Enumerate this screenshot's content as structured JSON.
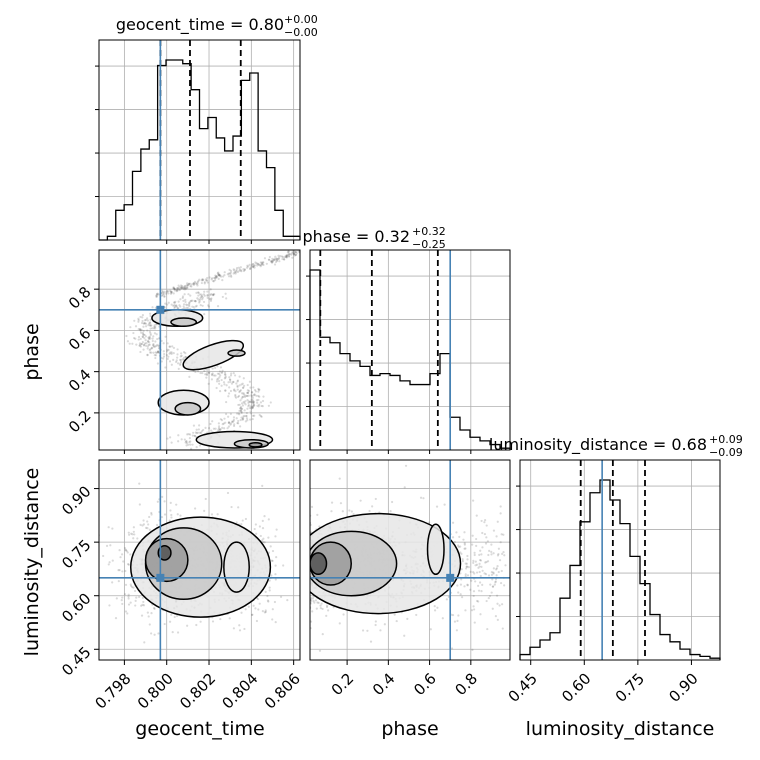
{
  "chart_data": {
    "type": "corner",
    "parameters": [
      "geocent_time",
      "phase",
      "luminosity_distance"
    ],
    "truth_color": "#4682b4",
    "titles": [
      {
        "text": "geocent_time = 0.80",
        "sup": "+0.00",
        "sub": "−0.00"
      },
      {
        "text": "phase = 0.32",
        "sup": "+0.32",
        "sub": "−0.25"
      },
      {
        "text": "luminosity_distance = 0.68",
        "sup": "+0.09",
        "sub": "−0.09"
      }
    ],
    "axis_labels": {
      "x": [
        "geocent_time",
        "phase",
        "luminosity_distance"
      ],
      "y": [
        "phase",
        "luminosity_distance"
      ]
    },
    "ranges": {
      "geocent_time": [
        0.7968,
        0.8063
      ],
      "phase": [
        0.02,
        0.99
      ],
      "luminosity_distance": [
        0.42,
        0.98
      ]
    },
    "ticks": {
      "geocent_time": {
        "values": [
          0.798,
          0.8,
          0.802,
          0.804,
          0.806
        ],
        "labels": [
          "0.798",
          "0.800",
          "0.802",
          "0.804",
          "0.806"
        ]
      },
      "phase": {
        "values": [
          0.2,
          0.4,
          0.6,
          0.8
        ],
        "labels": [
          "0.2",
          "0.4",
          "0.6",
          "0.8"
        ]
      },
      "luminosity_distance": {
        "values": [
          0.45,
          0.6,
          0.75,
          0.9
        ],
        "labels": [
          "0.45",
          "0.60",
          "0.75",
          "0.90"
        ]
      }
    },
    "truths": {
      "geocent_time": 0.7997,
      "phase": 0.7,
      "luminosity_distance": 0.65
    },
    "quantiles": {
      "geocent_time": [
        0.7997,
        0.8011,
        0.8035
      ],
      "phase": [
        0.07,
        0.32,
        0.64
      ],
      "luminosity_distance": [
        0.59,
        0.68,
        0.77
      ]
    },
    "histograms": {
      "geocent_time": [
        0.0,
        0.02,
        0.16,
        0.19,
        0.37,
        0.49,
        0.54,
        0.94,
        0.97,
        0.97,
        0.95,
        0.81,
        0.6,
        0.66,
        0.55,
        0.48,
        0.56,
        0.86,
        0.9,
        0.48,
        0.39,
        0.16,
        0.02,
        0.02
      ],
      "phase": [
        0.99,
        0.62,
        0.59,
        0.53,
        0.49,
        0.46,
        0.41,
        0.42,
        0.41,
        0.38,
        0.36,
        0.36,
        0.42,
        0.53,
        0.18,
        0.11,
        0.07,
        0.05,
        0.03,
        0.01
      ],
      "luminosity_distance": [
        0.03,
        0.07,
        0.11,
        0.15,
        0.34,
        0.52,
        0.76,
        0.92,
        0.99,
        0.88,
        0.75,
        0.57,
        0.42,
        0.25,
        0.14,
        0.1,
        0.06,
        0.03,
        0.02,
        0.01
      ]
    },
    "grid": true
  }
}
